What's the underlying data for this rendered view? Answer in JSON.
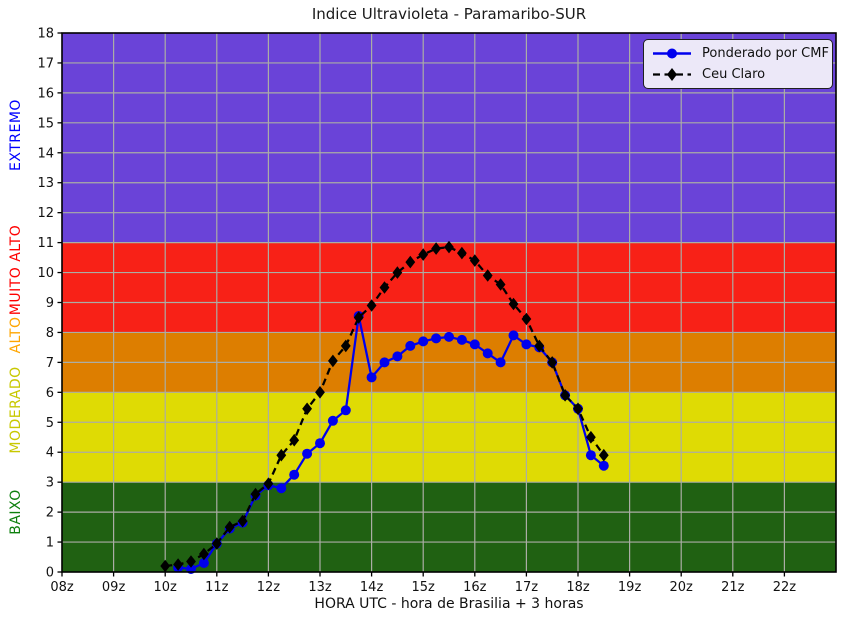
{
  "chart_data": {
    "type": "line",
    "title": "Indice Ultravioleta - Paramaribo-SUR",
    "xlabel": "HORA UTC - hora de Brasilia + 3 horas",
    "xlim": [
      8,
      23
    ],
    "ylim": [
      0,
      18
    ],
    "grid": true,
    "legend_position": "top-right",
    "x_tick_labels": [
      "08z",
      "09z",
      "10z",
      "11z",
      "12z",
      "13z",
      "14z",
      "15z",
      "16z",
      "17z",
      "18z",
      "19z",
      "20z",
      "21z",
      "22z"
    ],
    "y_tick_labels": [
      "0",
      "1",
      "2",
      "3",
      "4",
      "5",
      "6",
      "7",
      "8",
      "9",
      "10",
      "11",
      "12",
      "13",
      "14",
      "15",
      "16",
      "17",
      "18"
    ],
    "bands": [
      {
        "label": "BAIXO",
        "from": 0,
        "to": 3,
        "fill": "#206112",
        "label_color": "#0E800E",
        "label_v": 2.0
      },
      {
        "label": "MODERADO",
        "from": 3,
        "to": 6,
        "fill": "#DFDB04",
        "label_color": "#C8C800",
        "label_v": 5.4
      },
      {
        "label": "ALTO",
        "from": 6,
        "to": 8,
        "fill": "#DD7E00",
        "label_color": "#FFA500",
        "label_v": 7.9
      },
      {
        "label": "MUITO ALTO",
        "from": 8,
        "to": 11,
        "fill": "#F82117",
        "label_color": "#FF0000",
        "label_v": 10.1
      },
      {
        "label": "EXTREMO",
        "from": 11,
        "to": 18,
        "fill": "#6A43D8",
        "label_color": "#0000FF",
        "label_v": 14.6
      }
    ],
    "series": [
      {
        "name": "Ponderado por CMF",
        "color": "#0000EE",
        "marker": "circle",
        "line": "solid",
        "x": [
          10.25,
          10.5,
          10.75,
          11.0,
          11.25,
          11.5,
          11.75,
          12.0,
          12.25,
          12.5,
          12.75,
          13.0,
          13.25,
          13.5,
          13.75,
          14.0,
          14.25,
          14.5,
          14.75,
          15.0,
          15.25,
          15.5,
          15.75,
          16.0,
          16.25,
          16.5,
          16.75,
          17.0,
          17.25,
          17.5,
          17.75,
          18.0,
          18.25,
          18.5
        ],
        "y": [
          0.15,
          0.1,
          0.3,
          0.95,
          1.45,
          1.65,
          2.55,
          2.9,
          2.8,
          3.25,
          3.95,
          4.3,
          5.05,
          5.4,
          8.55,
          6.5,
          7.0,
          7.2,
          7.55,
          7.7,
          7.8,
          7.85,
          7.75,
          7.6,
          7.3,
          7.0,
          7.9,
          7.6,
          7.5,
          7.0,
          5.9,
          5.45,
          3.9,
          3.55
        ]
      },
      {
        "name": "Ceu Claro",
        "color": "#000000",
        "marker": "diamond",
        "line": "dashed",
        "x": [
          10.0,
          10.25,
          10.5,
          10.75,
          11.0,
          11.25,
          11.5,
          11.75,
          12.0,
          12.25,
          12.5,
          12.75,
          13.0,
          13.25,
          13.5,
          13.75,
          14.0,
          14.25,
          14.5,
          14.75,
          15.0,
          15.25,
          15.5,
          15.75,
          16.0,
          16.25,
          16.5,
          16.75,
          17.0,
          17.25,
          17.5,
          17.75,
          18.0,
          18.25,
          18.5
        ],
        "y": [
          0.2,
          0.25,
          0.35,
          0.6,
          0.95,
          1.5,
          1.7,
          2.6,
          2.95,
          3.9,
          4.4,
          5.45,
          6.0,
          7.05,
          7.55,
          8.5,
          8.9,
          9.5,
          10.0,
          10.35,
          10.6,
          10.8,
          10.85,
          10.65,
          10.4,
          9.9,
          9.6,
          8.95,
          8.45,
          7.55,
          7.0,
          5.9,
          5.45,
          4.5,
          3.9
        ]
      }
    ],
    "grid_color": "#ABADA5",
    "spine_color": "#000000",
    "text_color": "#111111"
  }
}
